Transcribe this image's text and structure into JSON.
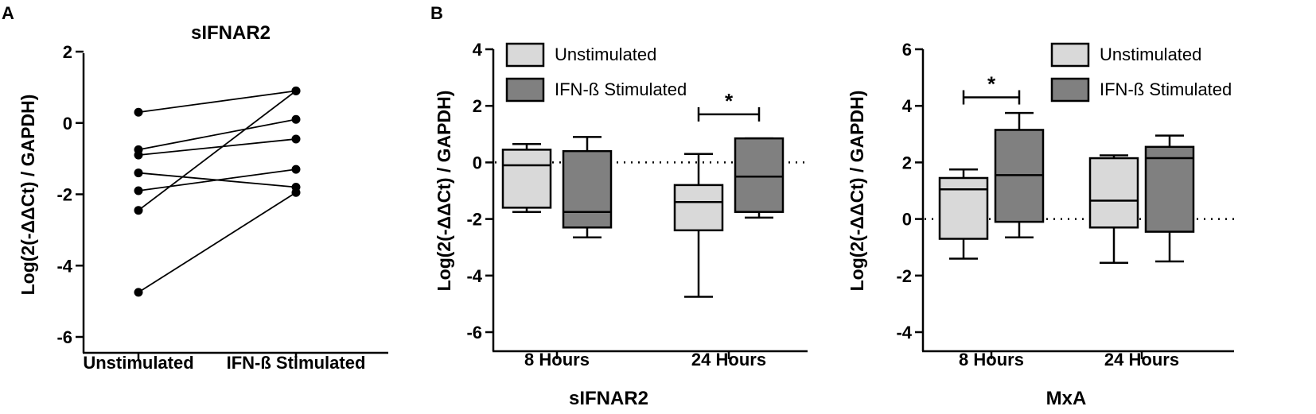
{
  "panel_labels": [
    "A",
    "B"
  ],
  "colors": {
    "unstimulated": "#d9d9d9",
    "stimulated": "#808080",
    "stroke": "#000000"
  },
  "chart_data": [
    {
      "id": "A",
      "type": "line",
      "title": "sIFNAR2",
      "xlabel": "",
      "ylabel": "Log(2(-ΔΔCt) / GAPDH)",
      "categories": [
        "Unstimulated",
        "IFN-ß Stimulated"
      ],
      "ylim": [
        -6,
        2
      ],
      "yticks": [
        2,
        0,
        -2,
        -4,
        -6
      ],
      "pairs": [
        [
          0.3,
          0.9
        ],
        [
          -0.75,
          0.1
        ],
        [
          -0.9,
          -0.45
        ],
        [
          -1.4,
          -1.8
        ],
        [
          -1.9,
          -1.3
        ],
        [
          -2.45,
          0.9
        ],
        [
          -4.75,
          -1.95
        ]
      ]
    },
    {
      "id": "B1",
      "type": "box",
      "title": "",
      "xlabel": "sIFNAR2",
      "ylabel": "Log(2(-ΔΔCt) / GAPDH)",
      "categories": [
        "8 Hours",
        "24 Hours"
      ],
      "ylim": [
        -6,
        4
      ],
      "yticks": [
        4,
        2,
        0,
        -2,
        -4,
        -6
      ],
      "reference_line": 0,
      "legend": [
        "Unstimulated",
        "IFN-ß Stimulated"
      ],
      "series": [
        {
          "name": "Unstimulated",
          "boxes": [
            {
              "min": -1.75,
              "q1": -1.6,
              "median": -0.1,
              "q3": 0.45,
              "max": 0.65
            },
            {
              "min": -4.75,
              "q1": -2.4,
              "median": -1.4,
              "q3": -0.8,
              "max": 0.3
            }
          ]
        },
        {
          "name": "IFN-ß Stimulated",
          "boxes": [
            {
              "min": -2.65,
              "q1": -2.3,
              "median": -1.75,
              "q3": 0.4,
              "max": 0.9
            },
            {
              "min": -1.95,
              "q1": -1.75,
              "median": -0.5,
              "q3": 0.85,
              "max": 0.85
            }
          ]
        }
      ],
      "significance": [
        {
          "category": 1,
          "level": 1.7,
          "label": "*"
        }
      ]
    },
    {
      "id": "B2",
      "type": "box",
      "title": "",
      "xlabel": "MxA",
      "ylabel": "Log(2(-ΔΔCt) / GAPDH)",
      "categories": [
        "8 Hours",
        "24 Hours"
      ],
      "ylim": [
        -4,
        6
      ],
      "yticks": [
        6,
        4,
        2,
        0,
        -2,
        -4
      ],
      "reference_line": 0,
      "legend": [
        "Unstimulated",
        "IFN-ß Stimulated"
      ],
      "series": [
        {
          "name": "Unstimulated",
          "boxes": [
            {
              "min": -1.4,
              "q1": -0.7,
              "median": 1.05,
              "q3": 1.45,
              "max": 1.75
            },
            {
              "min": -1.55,
              "q1": -0.3,
              "median": 0.65,
              "q3": 2.15,
              "max": 2.25
            }
          ]
        },
        {
          "name": "IFN-ß Stimulated",
          "boxes": [
            {
              "min": -0.65,
              "q1": -0.1,
              "median": 1.55,
              "q3": 3.15,
              "max": 3.75
            },
            {
              "min": -1.5,
              "q1": -0.45,
              "median": 2.15,
              "q3": 2.55,
              "max": 2.95
            }
          ]
        }
      ],
      "significance": [
        {
          "category": 0,
          "level": 4.3,
          "label": "*"
        }
      ]
    }
  ]
}
